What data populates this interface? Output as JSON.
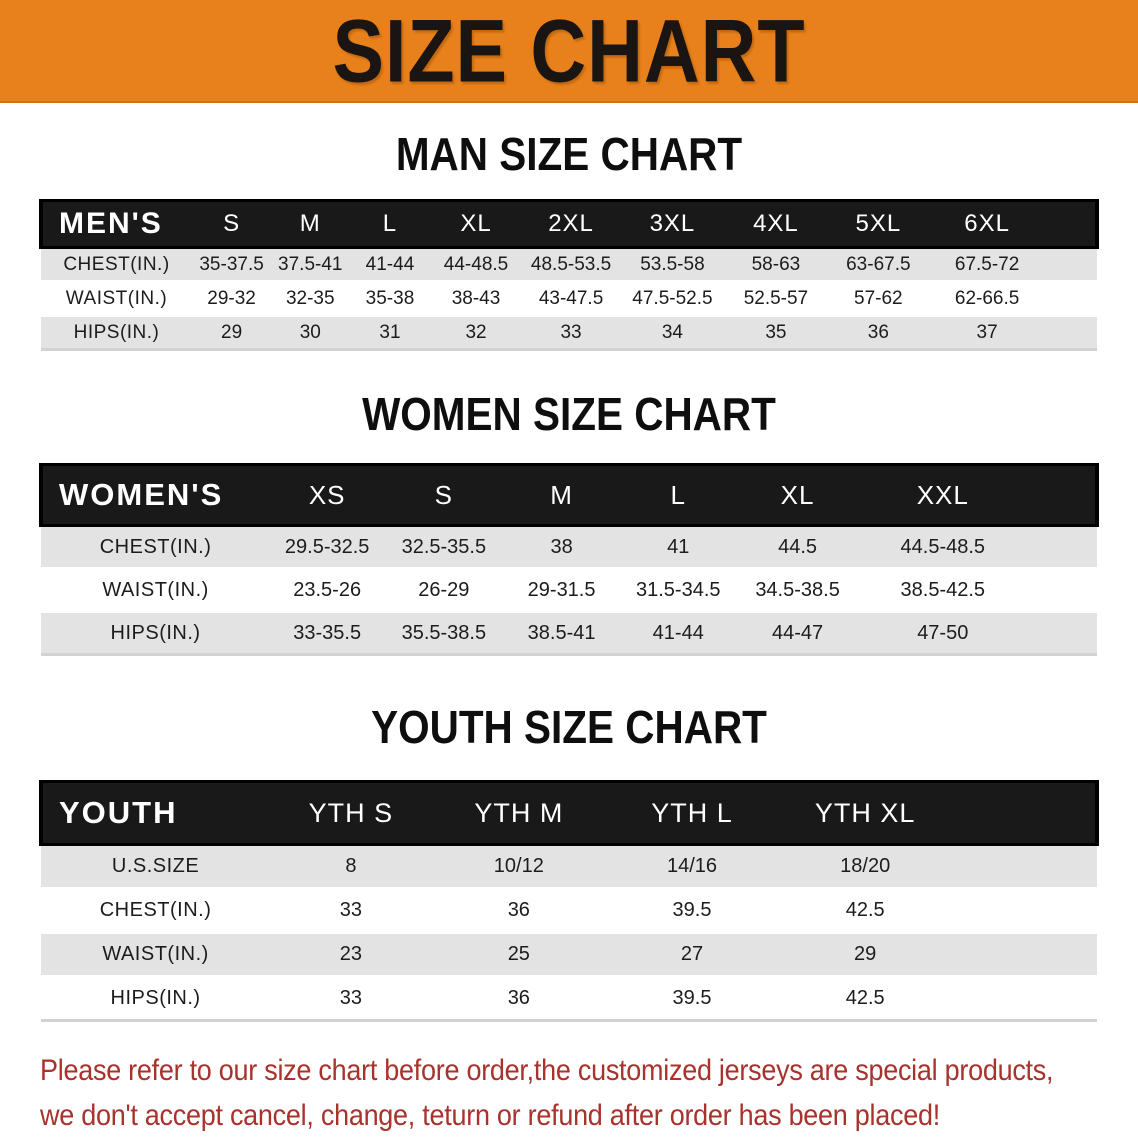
{
  "banner": {
    "title": "SIZE CHART"
  },
  "colors": {
    "banner_orange": "#E8811B",
    "header_band_black": "#191919",
    "row_stripe_gray": "#E3E3E3",
    "disclaimer_red": "#A8322C"
  },
  "sections": [
    {
      "heading": "MAN SIZE CHART"
    },
    {
      "heading": "WOMEN SIZE CHART"
    },
    {
      "heading": "YOUTH SIZE CHART"
    }
  ],
  "tables": [
    {
      "id": "mens",
      "corner_label": "MEN'S",
      "columns": [
        "S",
        "M",
        "L",
        "XL",
        "2XL",
        "3XL",
        "4XL",
        "5XL",
        "6XL",
        ""
      ],
      "rows": [
        {
          "label": "CHEST(IN.)",
          "values": [
            "35-37.5",
            "37.5-41",
            "41-44",
            "44-48.5",
            "48.5-53.5",
            "53.5-58",
            "58-63",
            "63-67.5",
            "67.5-72",
            ""
          ]
        },
        {
          "label": "WAIST(IN.)",
          "values": [
            "29-32",
            "32-35",
            "35-38",
            "38-43",
            "43-47.5",
            "47.5-52.5",
            "52.5-57",
            "57-62",
            "62-66.5",
            ""
          ]
        },
        {
          "label": "HIPS(IN.)",
          "values": [
            "29",
            "30",
            "31",
            "32",
            "33",
            "34",
            "35",
            "36",
            "37",
            ""
          ]
        }
      ]
    },
    {
      "id": "womens",
      "corner_label": "WOMEN'S",
      "columns": [
        "XS",
        "S",
        "M",
        "L",
        "XL",
        "XXL",
        ""
      ],
      "rows": [
        {
          "label": "CHEST(IN.)",
          "values": [
            "29.5-32.5",
            "32.5-35.5",
            "38",
            "41",
            "44.5",
            "44.5-48.5",
            ""
          ]
        },
        {
          "label": "WAIST(IN.)",
          "values": [
            "23.5-26",
            "26-29",
            "29-31.5",
            "31.5-34.5",
            "34.5-38.5",
            "38.5-42.5",
            ""
          ]
        },
        {
          "label": "HIPS(IN.)",
          "values": [
            "33-35.5",
            "35.5-38.5",
            "38.5-41",
            "41-44",
            "44-47",
            "47-50",
            ""
          ]
        }
      ]
    },
    {
      "id": "youth",
      "corner_label": "YOUTH",
      "columns": [
        "YTH S",
        "YTH M",
        "YTH L",
        "YTH XL",
        ""
      ],
      "rows": [
        {
          "label": "U.S.SIZE",
          "values": [
            "8",
            "10/12",
            "14/16",
            "18/20",
            ""
          ]
        },
        {
          "label": "CHEST(IN.)",
          "values": [
            "33",
            "36",
            "39.5",
            "42.5",
            ""
          ]
        },
        {
          "label": "WAIST(IN.)",
          "values": [
            "23",
            "25",
            "27",
            "29",
            ""
          ]
        },
        {
          "label": "HIPS(IN.)",
          "values": [
            "33",
            "36",
            "39.5",
            "42.5",
            ""
          ]
        }
      ]
    }
  ],
  "disclaimer": {
    "line1": "Please refer to our size chart before order,the customized jerseys are special products,",
    "line2": "we don't accept cancel, change, teturn or refund after order has been placed!"
  }
}
